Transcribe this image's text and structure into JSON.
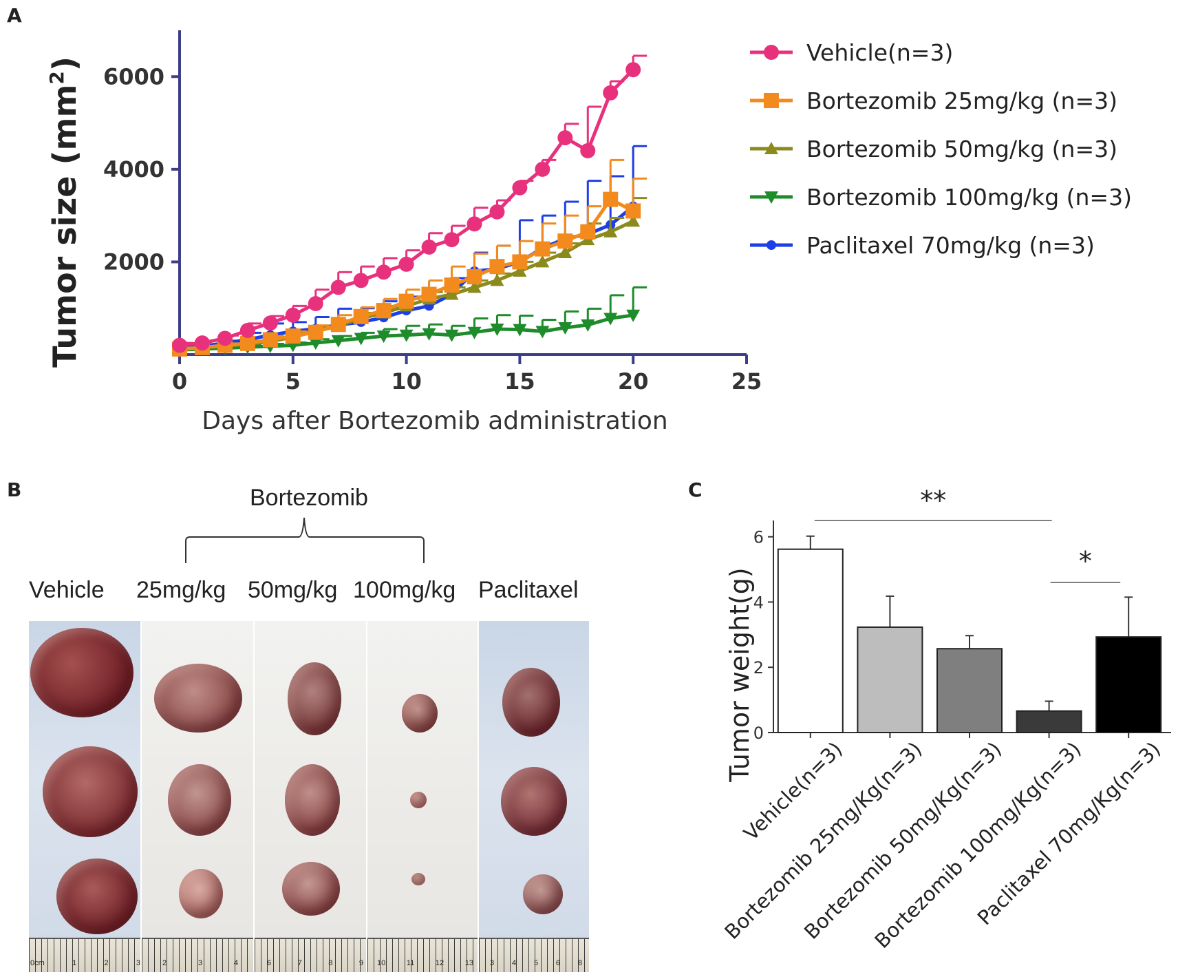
{
  "panels": {
    "a": "A",
    "b": "B",
    "c": "C"
  },
  "chart_data": [
    {
      "type": "line",
      "panel": "A",
      "xlabel": "Days after Bortezomib administration",
      "ylabel_main": "Tumor size (mm",
      "ylabel_sup": "2",
      "ylabel_close": ")",
      "xlim": [
        0,
        25
      ],
      "ylim": [
        0,
        7000
      ],
      "xticks": [
        0,
        5,
        10,
        15,
        20,
        25
      ],
      "yticks": [
        2000,
        4000,
        6000
      ],
      "x": [
        0,
        1,
        2,
        3,
        4,
        5,
        6,
        7,
        8,
        9,
        10,
        11,
        12,
        13,
        14,
        15,
        16,
        17,
        18,
        19,
        20
      ],
      "series": [
        {
          "name": "Vehicle(n=3)",
          "color": "#e8317d",
          "marker": "circle",
          "values": [
            200,
            250,
            350,
            520,
            680,
            850,
            1100,
            1450,
            1600,
            1780,
            1950,
            2320,
            2480,
            2820,
            3080,
            3600,
            4000,
            4680,
            4400,
            5650,
            6150
          ],
          "errors": [
            50,
            50,
            60,
            150,
            150,
            200,
            300,
            330,
            300,
            300,
            300,
            300,
            300,
            350,
            250,
            150,
            200,
            300,
            950,
            250,
            300
          ]
        },
        {
          "name": "Bortezomib 25mg/kg (n=3)",
          "color": "#f28a1d",
          "marker": "square",
          "values": [
            120,
            150,
            200,
            240,
            320,
            400,
            480,
            650,
            820,
            950,
            1150,
            1300,
            1500,
            1680,
            1900,
            2000,
            2280,
            2450,
            2650,
            3350,
            3100
          ],
          "errors": [
            30,
            30,
            40,
            60,
            80,
            100,
            150,
            200,
            200,
            250,
            250,
            300,
            400,
            500,
            450,
            450,
            550,
            550,
            550,
            850,
            700
          ]
        },
        {
          "name": "Bortezomib 50mg/kg (n=3)",
          "color": "#8b8a1c",
          "marker": "triangle-up",
          "values": [
            110,
            150,
            180,
            230,
            280,
            380,
            500,
            620,
            780,
            900,
            1050,
            1200,
            1300,
            1450,
            1600,
            1800,
            2000,
            2200,
            2480,
            2650,
            2880
          ],
          "errors": [
            20,
            30,
            40,
            50,
            60,
            80,
            100,
            120,
            120,
            150,
            150,
            150,
            150,
            150,
            150,
            200,
            200,
            200,
            350,
            300,
            500
          ]
        },
        {
          "name": "Bortezomib 100mg/kg (n=3)",
          "color": "#1e8c2a",
          "marker": "triangle-down",
          "values": [
            100,
            120,
            140,
            160,
            180,
            200,
            250,
            300,
            350,
            400,
            420,
            450,
            420,
            480,
            550,
            540,
            500,
            580,
            640,
            780,
            850
          ],
          "errors": [
            20,
            20,
            30,
            40,
            50,
            60,
            80,
            100,
            120,
            150,
            200,
            200,
            200,
            300,
            300,
            300,
            250,
            350,
            350,
            500,
            600
          ]
        },
        {
          "name": "Paclitaxel 70mg/kg (n=3)",
          "color": "#1e3ee6",
          "marker": "circle-small",
          "values": [
            150,
            180,
            250,
            320,
            420,
            500,
            560,
            640,
            700,
            800,
            950,
            1050,
            1300,
            1800,
            1850,
            2000,
            2300,
            2500,
            2600,
            2800,
            3200
          ],
          "errors": [
            30,
            40,
            50,
            150,
            250,
            200,
            250,
            350,
            300,
            350,
            300,
            300,
            350,
            400,
            500,
            900,
            700,
            800,
            1150,
            1050,
            1300
          ]
        }
      ]
    },
    {
      "type": "bar",
      "panel": "C",
      "ylabel": "Tumor weight(g)",
      "ylim": [
        0,
        6.5
      ],
      "yticks": [
        0,
        2,
        4,
        6
      ],
      "categories": [
        "Vehicle(n=3)",
        "Bortezomib 25mg/Kg(n=3)",
        "Bortezomib 50mg/Kg(n=3)",
        "Bortezomib 100mg/Kg(n=3)",
        "Paclitaxel  70mg/Kg(n=3)"
      ],
      "values": [
        5.62,
        3.23,
        2.57,
        0.66,
        2.93
      ],
      "errors": [
        0.4,
        0.95,
        0.4,
        0.3,
        1.22
      ],
      "colors": [
        "#ffffff",
        "#bdbdbd",
        "#7f7f7f",
        "#3a3a3a",
        "#000000"
      ],
      "significance": [
        {
          "label": "**",
          "from": 0,
          "to": 3
        },
        {
          "label": "*",
          "from": 3,
          "to": 4
        }
      ]
    }
  ],
  "photo_panel": {
    "group_header": "Bortezomib",
    "labels": [
      "Vehicle",
      "25mg/kg",
      "50mg/kg",
      "100mg/kg",
      "Paclitaxel"
    ],
    "ruler_numbers": [
      [
        "0cm",
        "1",
        "2",
        "3"
      ],
      [
        "2",
        "3",
        "4"
      ],
      [
        "6",
        "7",
        "8",
        "9"
      ],
      [
        "10",
        "11",
        "12",
        "13"
      ],
      [
        "3",
        "4",
        "5",
        "6",
        "8"
      ]
    ]
  }
}
